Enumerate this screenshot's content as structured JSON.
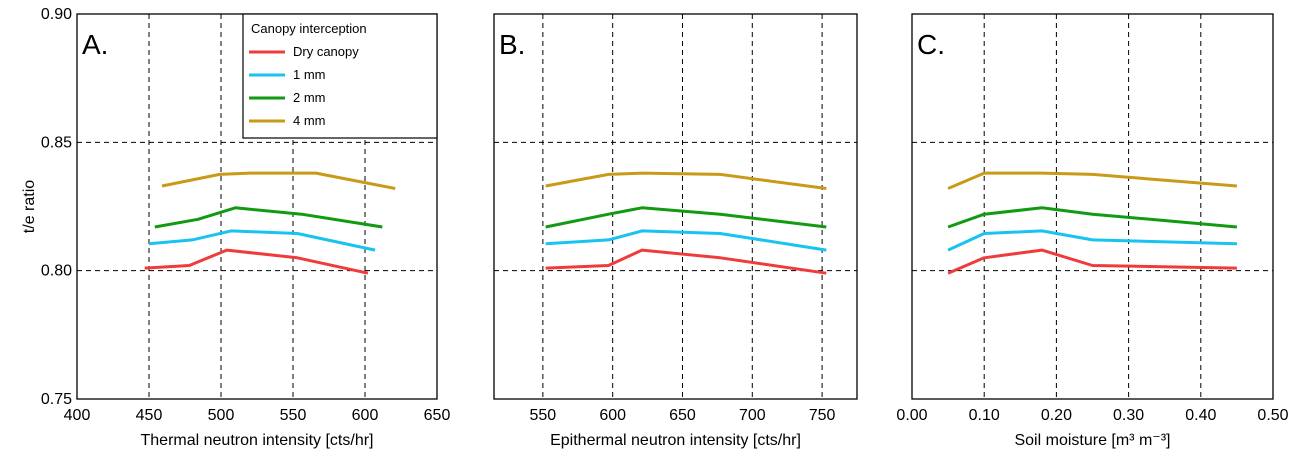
{
  "chart_data": [
    {
      "type": "line",
      "panel_label": "A.",
      "xlabel": "Thermal neutron intensity [cts/hr]",
      "ylabel": "t/e ratio",
      "xlim": [
        400,
        650
      ],
      "ylim": [
        0.75,
        0.9
      ],
      "xticks": [
        400,
        450,
        500,
        550,
        600,
        650
      ],
      "xtick_labels": [
        "400",
        "450",
        "500",
        "550",
        "600",
        "650"
      ],
      "yticks": [
        0.75,
        0.8,
        0.85,
        0.9
      ],
      "ytick_labels": [
        "0.75",
        "0.80",
        "0.85",
        "0.90"
      ],
      "grid": true,
      "legend": {
        "title": "Canopy interception",
        "placement": "top-right",
        "entries": [
          "Dry canopy",
          "1 mm",
          "2 mm",
          "4 mm"
        ]
      },
      "series": [
        {
          "name": "Dry canopy",
          "color": "#ef3b3b",
          "x": [
            447,
            478,
            504,
            553,
            602
          ],
          "y": [
            0.801,
            0.802,
            0.808,
            0.805,
            0.799
          ]
        },
        {
          "name": "1 mm",
          "color": "#19c3f0",
          "x": [
            450,
            480,
            507,
            553,
            607
          ],
          "y": [
            0.8105,
            0.812,
            0.8155,
            0.8145,
            0.808
          ]
        },
        {
          "name": "2 mm",
          "color": "#139a13",
          "x": [
            454,
            484,
            510,
            556,
            612
          ],
          "y": [
            0.817,
            0.82,
            0.8245,
            0.822,
            0.817
          ]
        },
        {
          "name": "4 mm",
          "color": "#c99a17",
          "x": [
            459,
            499,
            520,
            566,
            621
          ],
          "y": [
            0.833,
            0.8375,
            0.838,
            0.838,
            0.832
          ]
        }
      ]
    },
    {
      "type": "line",
      "panel_label": "B.",
      "xlabel": "Epithermal neutron intensity [cts/hr]",
      "ylabel": "",
      "xlim": [
        515,
        775
      ],
      "ylim": [
        0.75,
        0.9
      ],
      "xticks": [
        550,
        600,
        650,
        700,
        750
      ],
      "xtick_labels": [
        "550",
        "600",
        "650",
        "700",
        "750"
      ],
      "yticks": [
        0.75,
        0.8,
        0.85,
        0.9
      ],
      "ytick_labels": [],
      "grid": true,
      "series": [
        {
          "name": "Dry canopy",
          "color": "#ef3b3b",
          "x": [
            552,
            597,
            621,
            677,
            753
          ],
          "y": [
            0.801,
            0.802,
            0.808,
            0.805,
            0.799
          ]
        },
        {
          "name": "1 mm",
          "color": "#19c3f0",
          "x": [
            552,
            597,
            621,
            677,
            753
          ],
          "y": [
            0.8105,
            0.812,
            0.8155,
            0.8145,
            0.808
          ]
        },
        {
          "name": "2 mm",
          "color": "#139a13",
          "x": [
            552,
            597,
            621,
            677,
            753
          ],
          "y": [
            0.817,
            0.822,
            0.8245,
            0.822,
            0.817
          ]
        },
        {
          "name": "4 mm",
          "color": "#c99a17",
          "x": [
            552,
            597,
            621,
            677,
            753
          ],
          "y": [
            0.833,
            0.8375,
            0.838,
            0.8375,
            0.832
          ]
        }
      ]
    },
    {
      "type": "line",
      "panel_label": "C.",
      "xlabel": "Soil moisture [m³ m⁻³]",
      "ylabel": "",
      "xlim": [
        0.0,
        0.5
      ],
      "ylim": [
        0.75,
        0.9
      ],
      "xticks": [
        0.0,
        0.1,
        0.2,
        0.3,
        0.4,
        0.5
      ],
      "xtick_labels": [
        "0.00",
        "0.10",
        "0.20",
        "0.30",
        "0.40",
        "0.50"
      ],
      "yticks": [
        0.75,
        0.8,
        0.85,
        0.9
      ],
      "ytick_labels": [],
      "grid": true,
      "series": [
        {
          "name": "Dry canopy",
          "color": "#ef3b3b",
          "x": [
            0.05,
            0.1,
            0.18,
            0.25,
            0.45
          ],
          "y": [
            0.799,
            0.805,
            0.808,
            0.802,
            0.801
          ]
        },
        {
          "name": "1 mm",
          "color": "#19c3f0",
          "x": [
            0.05,
            0.1,
            0.18,
            0.25,
            0.45
          ],
          "y": [
            0.808,
            0.8145,
            0.8155,
            0.812,
            0.8105
          ]
        },
        {
          "name": "2 mm",
          "color": "#139a13",
          "x": [
            0.05,
            0.1,
            0.18,
            0.25,
            0.45
          ],
          "y": [
            0.817,
            0.822,
            0.8245,
            0.822,
            0.817
          ]
        },
        {
          "name": "4 mm",
          "color": "#c99a17",
          "x": [
            0.05,
            0.1,
            0.18,
            0.25,
            0.45
          ],
          "y": [
            0.832,
            0.838,
            0.838,
            0.8375,
            0.833
          ]
        }
      ]
    }
  ]
}
